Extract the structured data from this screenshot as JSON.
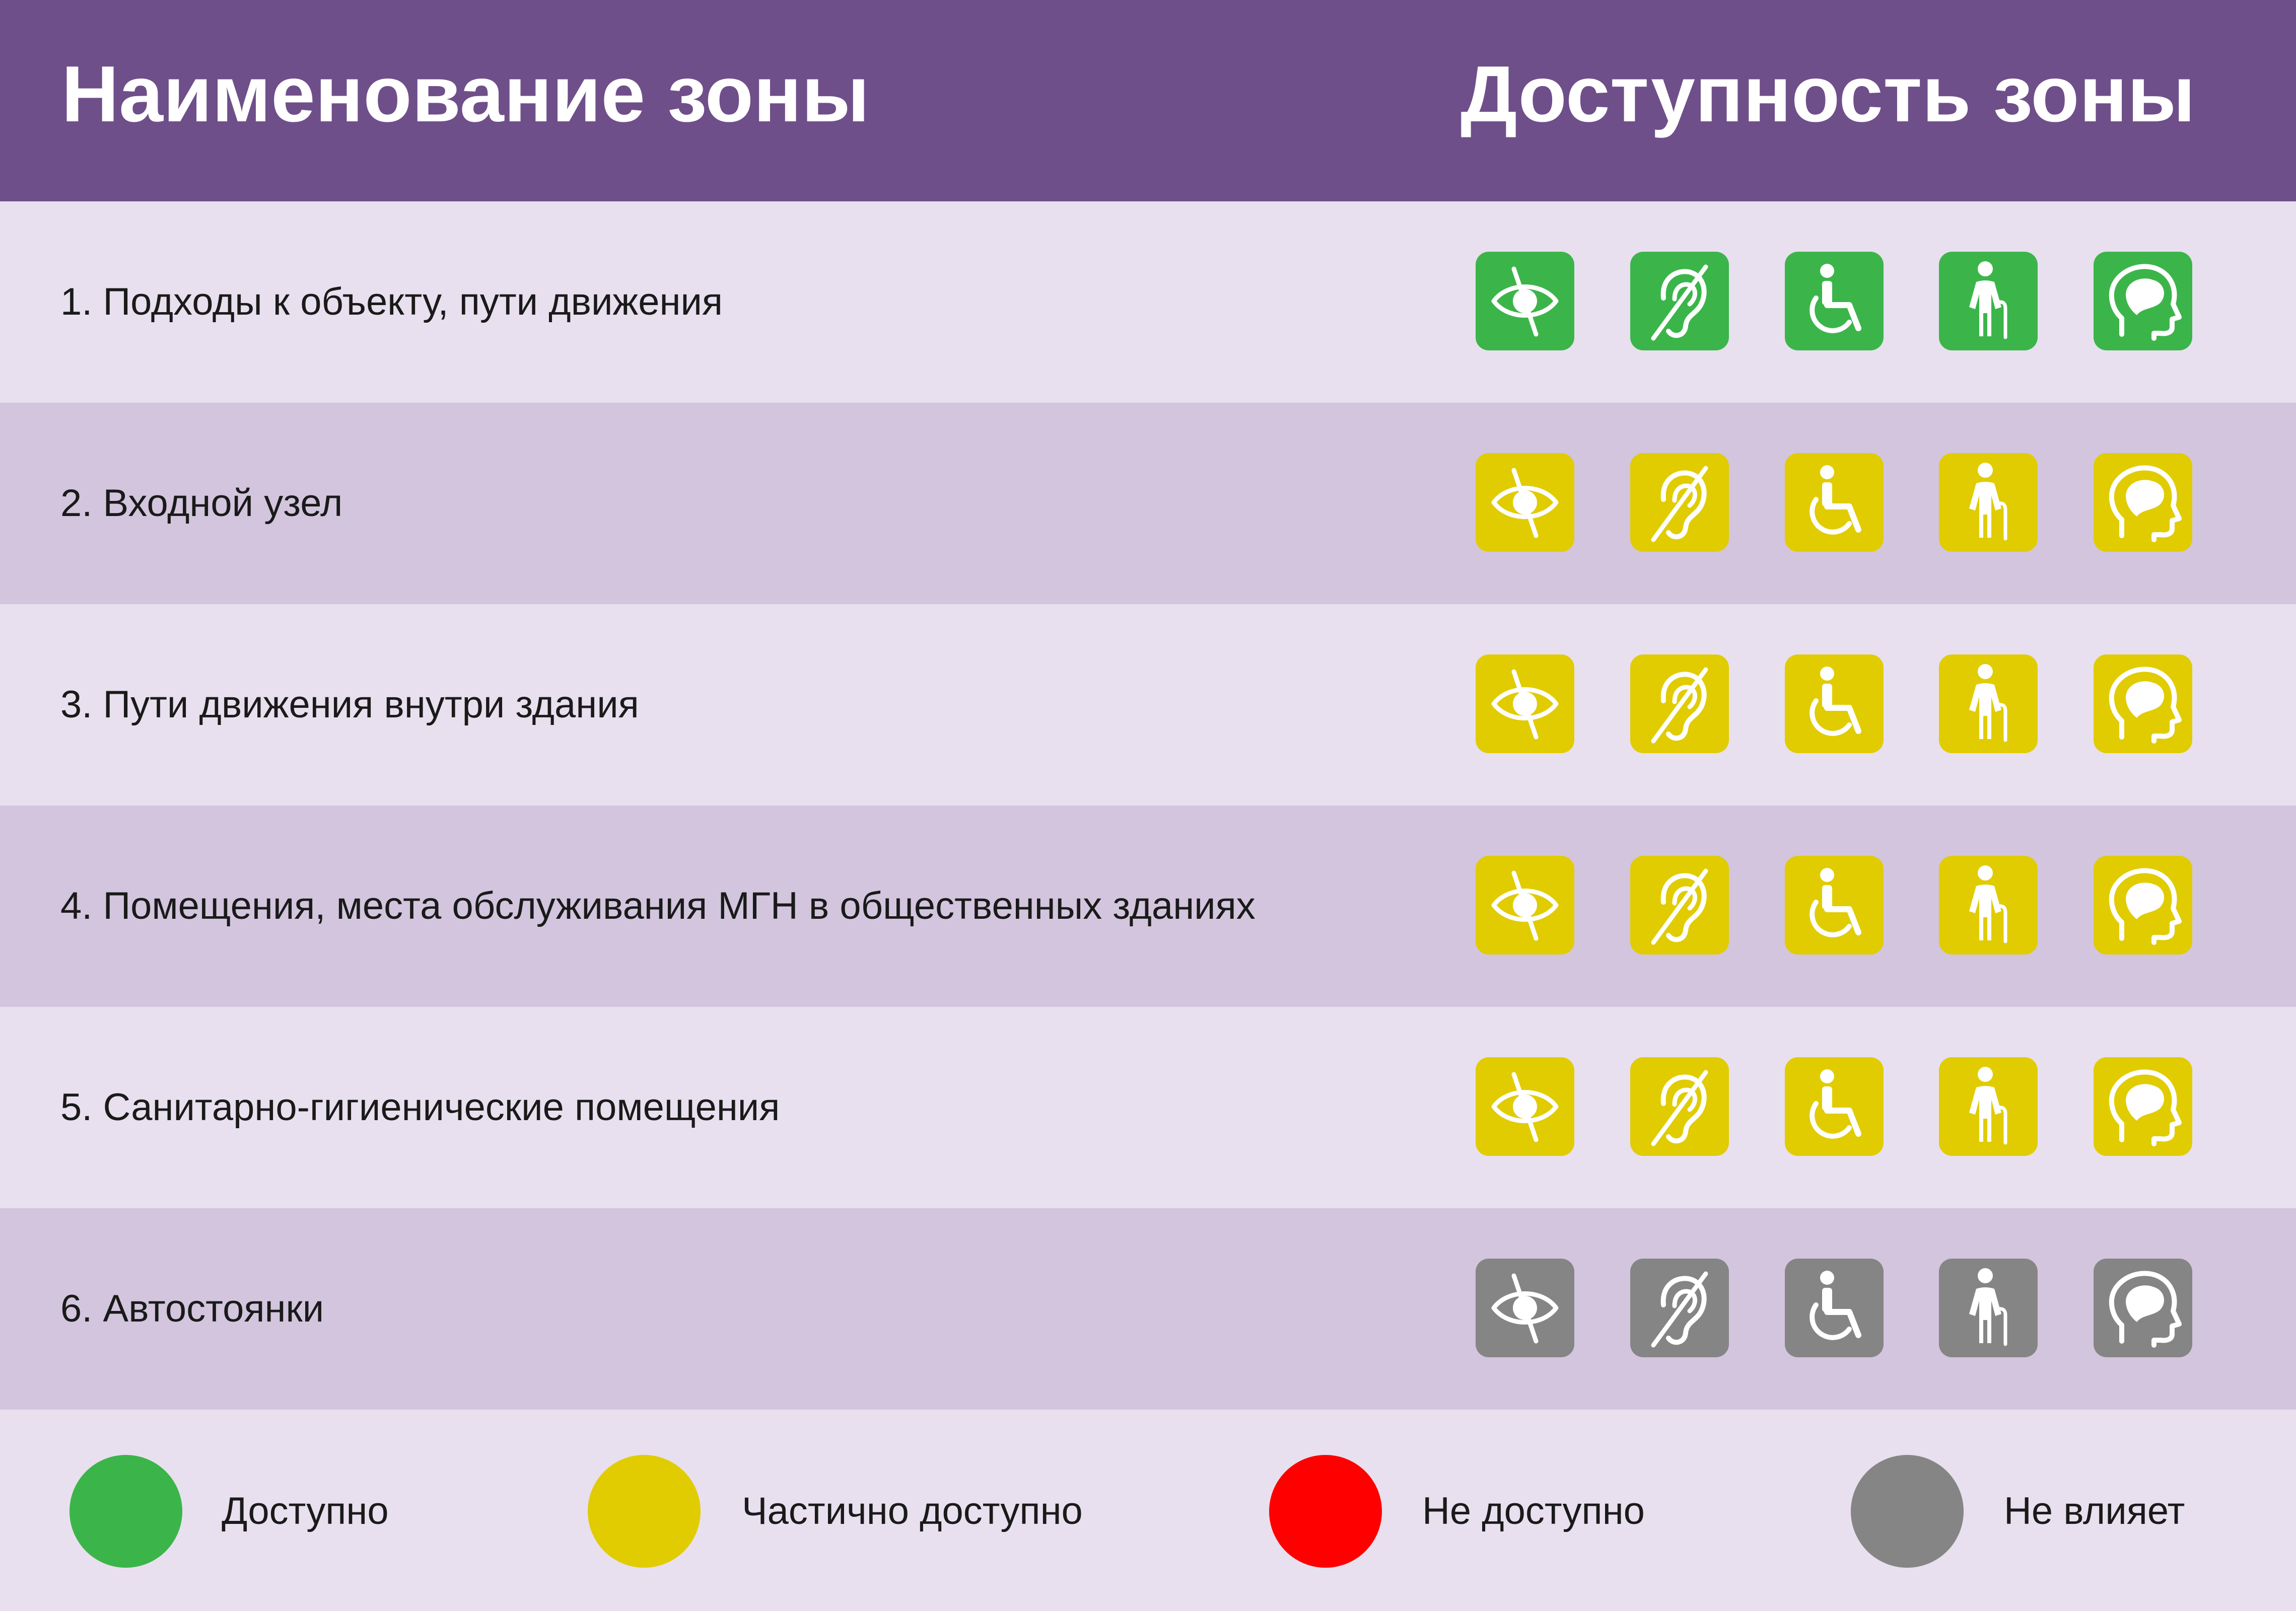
{
  "header": {
    "zone_name_title": "Наименование зоны",
    "availability_title": "Доступность зоны"
  },
  "categories": [
    {
      "id": "vision",
      "icon": "eye-crossed-icon"
    },
    {
      "id": "hearing",
      "icon": "ear-crossed-icon"
    },
    {
      "id": "wheelchair",
      "icon": "wheelchair-icon"
    },
    {
      "id": "mobility",
      "icon": "elderly-cane-icon"
    },
    {
      "id": "mental",
      "icon": "head-brain-icon"
    }
  ],
  "zones": [
    {
      "label": "1. Подходы к объекту, пути движения",
      "statuses": [
        "available",
        "available",
        "available",
        "available",
        "available"
      ]
    },
    {
      "label": "2. Входной узел",
      "statuses": [
        "partial",
        "partial",
        "partial",
        "partial",
        "partial"
      ]
    },
    {
      "label": "3. Пути движения внутри здания",
      "statuses": [
        "partial",
        "partial",
        "partial",
        "partial",
        "partial"
      ]
    },
    {
      "label": "4. Помещения, места обслуживания МГН в общественных зданиях",
      "statuses": [
        "partial",
        "partial",
        "partial",
        "partial",
        "partial"
      ]
    },
    {
      "label": "5. Санитарно-гигиенические помещения",
      "statuses": [
        "partial",
        "partial",
        "partial",
        "partial",
        "partial"
      ]
    },
    {
      "label": "6. Автостоянки",
      "statuses": [
        "noeffect",
        "noeffect",
        "noeffect",
        "noeffect",
        "noeffect"
      ]
    }
  ],
  "legend": [
    {
      "status": "available",
      "label": "Доступно",
      "color": "#3BB54A"
    },
    {
      "status": "partial",
      "label": "Частично доступно",
      "color": "#E0CC00"
    },
    {
      "status": "unavailable",
      "label": "Не доступно",
      "color": "#FF0000"
    },
    {
      "status": "noeffect",
      "label": "Не влияет",
      "color": "#858585"
    }
  ]
}
